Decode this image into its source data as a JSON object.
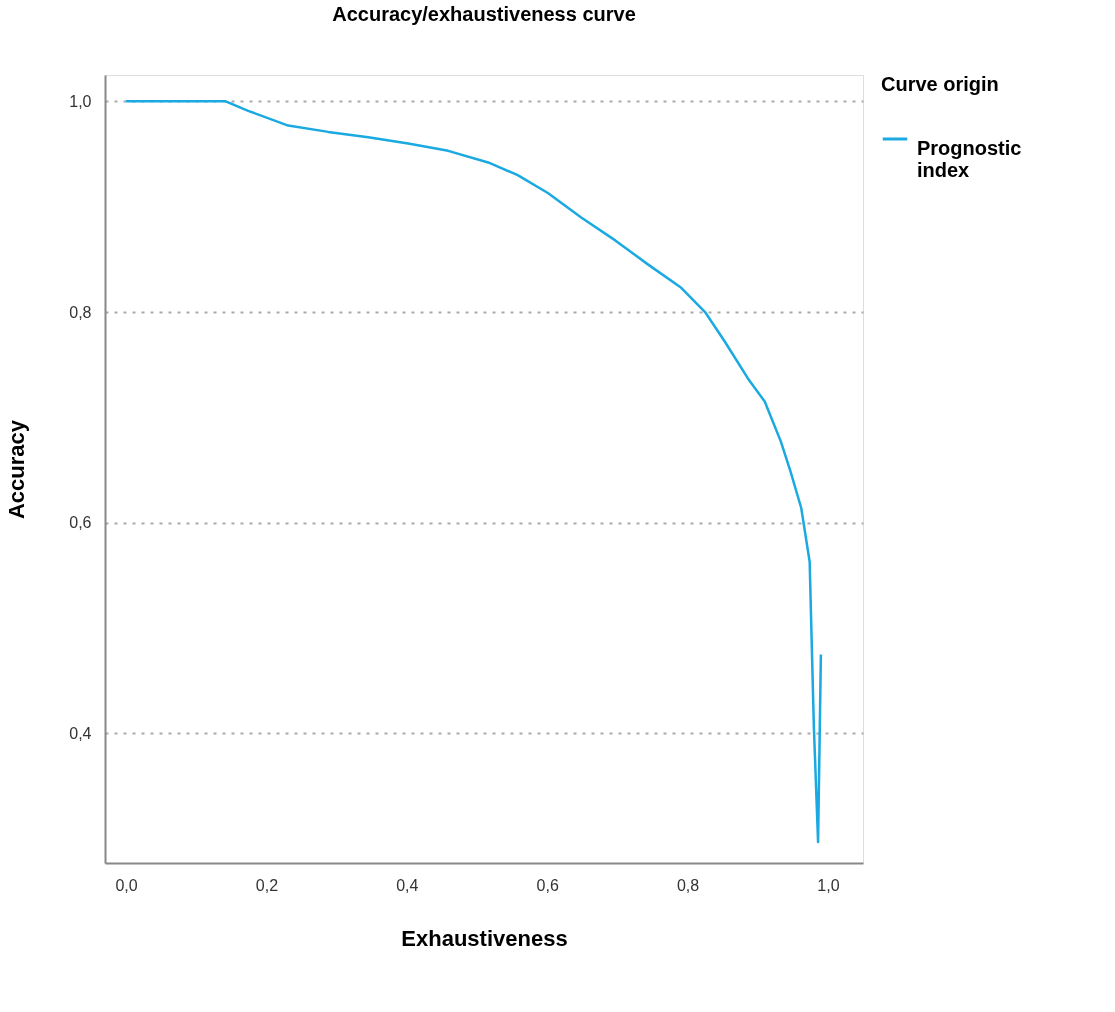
{
  "chart_data": {
    "type": "line",
    "title": "Accuracy/exhaustiveness curve",
    "xlabel": "Exhaustiveness",
    "ylabel": "Accuracy",
    "legend_title": "Curve origin",
    "x": [
      0,
      0.142,
      0.174,
      0.231,
      0.288,
      0.345,
      0.402,
      0.459,
      0.516,
      0.558,
      0.601,
      0.648,
      0.697,
      0.744,
      0.791,
      0.825,
      0.853,
      0.886,
      0.91,
      0.933,
      0.947,
      0.962,
      0.974,
      0.98,
      0.986,
      0.99
    ],
    "series": [
      {
        "name": "Prognostic index",
        "color": "#1ba9e1",
        "values": [
          1.0,
          1.0,
          0.991,
          0.977,
          0.971,
          0.966,
          0.96,
          0.953,
          0.942,
          0.93,
          0.913,
          0.89,
          0.868,
          0.845,
          0.823,
          0.8,
          0.772,
          0.737,
          0.715,
          0.677,
          0.648,
          0.614,
          0.563,
          0.406,
          0.297,
          0.475
        ]
      }
    ],
    "xlim": [
      -0.03,
      1.05
    ],
    "ylim": [
      0.277,
      1.025
    ],
    "xticks": [
      {
        "value": 0,
        "label": "0,0"
      },
      {
        "value": 0.2,
        "label": "0,2"
      },
      {
        "value": 0.4,
        "label": "0,4"
      },
      {
        "value": 0.6,
        "label": "0,6"
      },
      {
        "value": 0.8,
        "label": "0,8"
      },
      {
        "value": 1.0,
        "label": "1,0"
      }
    ],
    "yticks": [
      {
        "value": 0.4,
        "label": "0,4"
      },
      {
        "value": 0.6,
        "label": "0,6"
      },
      {
        "value": 0.8,
        "label": "0,8"
      },
      {
        "value": 1.0,
        "label": "1,0"
      }
    ],
    "grid": "y",
    "legend": "top right",
    "marker": "none",
    "line_style": "solid"
  }
}
